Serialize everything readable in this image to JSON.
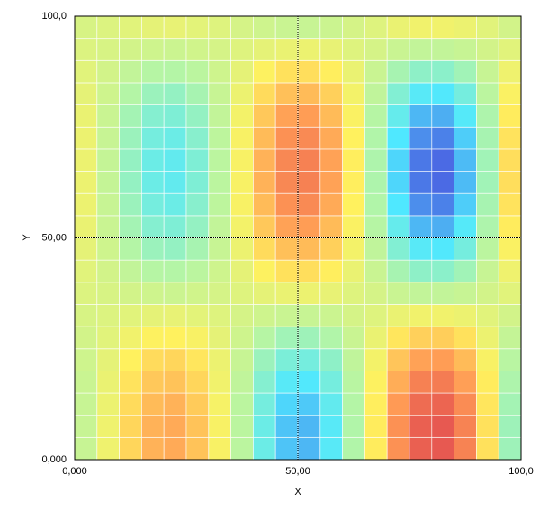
{
  "chart_data": {
    "type": "heatmap",
    "xlabel": "X",
    "ylabel": "Y",
    "xlim": [
      0,
      100
    ],
    "ylim": [
      0,
      100
    ],
    "xticks": [
      {
        "value": 0,
        "label": "0,000"
      },
      {
        "value": 50,
        "label": "50,00"
      },
      {
        "value": 100,
        "label": "100,0"
      }
    ],
    "yticks": [
      {
        "value": 0,
        "label": "0,000"
      },
      {
        "value": 50,
        "label": "50,00"
      },
      {
        "value": 100,
        "label": "100,0"
      }
    ],
    "grid": true,
    "zlim": [
      -0.8,
      0.8
    ],
    "colors": [
      "#4a58e0",
      "#4fe8ff",
      "#b4f5a6",
      "#fff15e",
      "#ff9a55",
      "#e45050"
    ],
    "x": [
      2.5,
      7.5,
      12.5,
      17.5,
      22.5,
      27.5,
      32.5,
      37.5,
      42.5,
      47.5,
      52.5,
      57.5,
      62.5,
      67.5,
      72.5,
      77.5,
      82.5,
      87.5,
      92.5,
      97.5
    ],
    "y": [
      2.5,
      7.5,
      12.5,
      17.5,
      22.5,
      27.5,
      32.5,
      37.5,
      42.5,
      47.5,
      52.5,
      57.5,
      62.5,
      67.5,
      72.5,
      77.5,
      82.5,
      87.5,
      92.5,
      97.5
    ],
    "z": [
      [
        -0.08,
        0.09,
        0.26,
        0.39,
        0.42,
        0.33,
        0.13,
        -0.13,
        -0.39,
        -0.56,
        -0.59,
        -0.45,
        -0.17,
        0.18,
        0.52,
        0.73,
        0.76,
        0.58,
        0.22,
        -0.23
      ],
      [
        -0.08,
        0.09,
        0.26,
        0.39,
        0.42,
        0.33,
        0.13,
        -0.13,
        -0.39,
        -0.56,
        -0.59,
        -0.45,
        -0.17,
        0.18,
        0.52,
        0.73,
        0.76,
        0.58,
        0.22,
        -0.23
      ],
      [
        -0.08,
        0.08,
        0.24,
        0.36,
        0.39,
        0.3,
        0.12,
        -0.13,
        -0.36,
        -0.52,
        -0.55,
        -0.42,
        -0.16,
        0.17,
        0.48,
        0.68,
        0.71,
        0.54,
        0.2,
        -0.21
      ],
      [
        -0.07,
        0.07,
        0.21,
        0.31,
        0.33,
        0.26,
        0.1,
        -0.11,
        -0.31,
        -0.45,
        -0.47,
        -0.36,
        -0.14,
        0.15,
        0.41,
        0.59,
        0.61,
        0.46,
        0.18,
        -0.18
      ],
      [
        -0.05,
        0.05,
        0.16,
        0.24,
        0.26,
        0.2,
        0.08,
        -0.08,
        -0.24,
        -0.34,
        -0.36,
        -0.28,
        -0.11,
        0.11,
        0.32,
        0.45,
        0.47,
        0.36,
        0.13,
        -0.14
      ],
      [
        -0.03,
        0.03,
        0.1,
        0.15,
        0.16,
        0.13,
        0.05,
        -0.05,
        -0.15,
        -0.22,
        -0.23,
        -0.17,
        -0.07,
        0.07,
        0.2,
        0.28,
        0.29,
        0.22,
        0.08,
        -0.09
      ],
      [
        -0.01,
        0.01,
        0.03,
        0.05,
        0.06,
        0.04,
        0.02,
        -0.02,
        -0.05,
        -0.07,
        -0.08,
        -0.06,
        -0.02,
        0.02,
        0.07,
        0.1,
        0.1,
        0.08,
        0.03,
        -0.03
      ],
      [
        0.01,
        -0.01,
        -0.03,
        -0.05,
        -0.06,
        -0.04,
        -0.02,
        0.02,
        0.05,
        0.07,
        0.08,
        0.06,
        0.02,
        -0.02,
        -0.07,
        -0.1,
        -0.1,
        -0.08,
        -0.03,
        0.03
      ],
      [
        0.03,
        -0.03,
        -0.1,
        -0.15,
        -0.16,
        -0.13,
        -0.05,
        0.05,
        0.15,
        0.22,
        0.23,
        0.17,
        0.07,
        -0.07,
        -0.2,
        -0.28,
        -0.29,
        -0.22,
        -0.08,
        0.09
      ],
      [
        0.05,
        -0.05,
        -0.16,
        -0.24,
        -0.26,
        -0.2,
        -0.08,
        0.08,
        0.24,
        0.34,
        0.36,
        0.28,
        0.11,
        -0.11,
        -0.32,
        -0.45,
        -0.47,
        -0.36,
        -0.13,
        0.14
      ],
      [
        0.07,
        -0.07,
        -0.21,
        -0.31,
        -0.33,
        -0.26,
        -0.1,
        0.11,
        0.31,
        0.45,
        0.47,
        0.36,
        0.14,
        -0.15,
        -0.41,
        -0.59,
        -0.61,
        -0.46,
        -0.18,
        0.18
      ],
      [
        0.08,
        -0.08,
        -0.24,
        -0.36,
        -0.39,
        -0.3,
        -0.12,
        0.13,
        0.36,
        0.52,
        0.55,
        0.42,
        0.16,
        -0.17,
        -0.48,
        -0.68,
        -0.71,
        -0.54,
        -0.2,
        0.21
      ],
      [
        0.08,
        -0.09,
        -0.26,
        -0.39,
        -0.42,
        -0.33,
        -0.13,
        0.13,
        0.39,
        0.56,
        0.59,
        0.45,
        0.17,
        -0.18,
        -0.52,
        -0.73,
        -0.76,
        -0.58,
        -0.22,
        0.23
      ],
      [
        0.08,
        -0.09,
        -0.26,
        -0.39,
        -0.42,
        -0.33,
        -0.13,
        0.13,
        0.39,
        0.56,
        0.59,
        0.45,
        0.17,
        -0.18,
        -0.52,
        -0.73,
        -0.76,
        -0.58,
        -0.22,
        0.23
      ],
      [
        0.08,
        -0.08,
        -0.24,
        -0.36,
        -0.39,
        -0.3,
        -0.12,
        0.13,
        0.36,
        0.52,
        0.55,
        0.42,
        0.16,
        -0.17,
        -0.48,
        -0.68,
        -0.71,
        -0.54,
        -0.2,
        0.21
      ],
      [
        0.07,
        -0.07,
        -0.21,
        -0.31,
        -0.33,
        -0.26,
        -0.1,
        0.11,
        0.31,
        0.45,
        0.47,
        0.36,
        0.14,
        -0.15,
        -0.41,
        -0.59,
        -0.61,
        -0.46,
        -0.18,
        0.18
      ],
      [
        0.05,
        -0.05,
        -0.16,
        -0.24,
        -0.26,
        -0.2,
        -0.08,
        0.08,
        0.24,
        0.34,
        0.36,
        0.28,
        0.11,
        -0.11,
        -0.32,
        -0.45,
        -0.47,
        -0.36,
        -0.13,
        0.14
      ],
      [
        0.03,
        -0.03,
        -0.1,
        -0.15,
        -0.16,
        -0.13,
        -0.05,
        0.05,
        0.15,
        0.22,
        0.23,
        0.17,
        0.07,
        -0.07,
        -0.2,
        -0.28,
        -0.29,
        -0.22,
        -0.08,
        0.09
      ],
      [
        0.01,
        -0.01,
        -0.03,
        -0.05,
        -0.06,
        -0.04,
        -0.02,
        0.02,
        0.05,
        0.07,
        0.08,
        0.06,
        0.02,
        -0.02,
        -0.07,
        -0.1,
        -0.1,
        -0.08,
        -0.03,
        0.03
      ],
      [
        -0.01,
        0.01,
        0.03,
        0.05,
        0.06,
        0.04,
        0.02,
        -0.02,
        -0.05,
        -0.07,
        -0.08,
        -0.06,
        -0.02,
        0.02,
        0.07,
        0.1,
        0.1,
        0.08,
        0.03,
        -0.03
      ]
    ]
  }
}
